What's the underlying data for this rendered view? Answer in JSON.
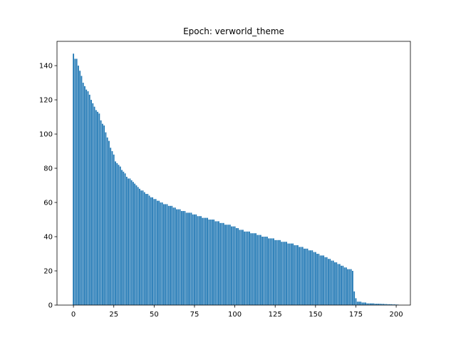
{
  "chart_data": {
    "type": "bar",
    "title": "Epoch: verworld_theme",
    "color": "#1f77b4",
    "x": [
      0,
      1,
      2,
      3,
      4,
      5,
      6,
      7,
      8,
      9,
      10,
      11,
      12,
      13,
      14,
      15,
      16,
      17,
      18,
      19,
      20,
      21,
      22,
      23,
      24,
      25,
      26,
      27,
      28,
      29,
      30,
      31,
      32,
      33,
      34,
      35,
      36,
      37,
      38,
      39,
      40,
      41,
      42,
      43,
      44,
      45,
      46,
      47,
      48,
      49,
      50,
      51,
      52,
      53,
      54,
      55,
      56,
      57,
      58,
      59,
      60,
      61,
      62,
      63,
      64,
      65,
      66,
      67,
      68,
      69,
      70,
      71,
      72,
      73,
      74,
      75,
      76,
      77,
      78,
      79,
      80,
      81,
      82,
      83,
      84,
      85,
      86,
      87,
      88,
      89,
      90,
      91,
      92,
      93,
      94,
      95,
      96,
      97,
      98,
      99,
      100,
      101,
      102,
      103,
      104,
      105,
      106,
      107,
      108,
      109,
      110,
      111,
      112,
      113,
      114,
      115,
      116,
      117,
      118,
      119,
      120,
      121,
      122,
      123,
      124,
      125,
      126,
      127,
      128,
      129,
      130,
      131,
      132,
      133,
      134,
      135,
      136,
      137,
      138,
      139,
      140,
      141,
      142,
      143,
      144,
      145,
      146,
      147,
      148,
      149,
      150,
      151,
      152,
      153,
      154,
      155,
      156,
      157,
      158,
      159,
      160,
      161,
      162,
      163,
      164,
      165,
      166,
      167,
      168,
      169,
      170,
      171,
      172,
      173,
      174,
      175,
      176,
      177,
      178,
      179,
      180,
      181,
      182,
      183,
      184,
      185,
      186,
      187,
      188,
      189,
      190,
      191,
      192,
      193,
      194,
      195,
      196,
      197,
      198,
      199,
      200,
      201
    ],
    "values": [
      147,
      144,
      144,
      140,
      137,
      134,
      130,
      128,
      126,
      125,
      123,
      120,
      118,
      116,
      114,
      113,
      112,
      108,
      106,
      105,
      101,
      98,
      96,
      92,
      90,
      88,
      84,
      83,
      82,
      81,
      79,
      78,
      77,
      75,
      74,
      74,
      73,
      72,
      71,
      70,
      69,
      68,
      67,
      67,
      66,
      65,
      65,
      64,
      63,
      63,
      62,
      62,
      61,
      61,
      60,
      60,
      59,
      59,
      59,
      58,
      58,
      58,
      57,
      57,
      56,
      56,
      56,
      55,
      55,
      55,
      54,
      54,
      54,
      54,
      53,
      53,
      53,
      52,
      52,
      52,
      51,
      51,
      51,
      51,
      50,
      50,
      50,
      50,
      49,
      49,
      49,
      48,
      48,
      48,
      47,
      47,
      47,
      47,
      46,
      46,
      46,
      45,
      45,
      44,
      44,
      44,
      43,
      43,
      43,
      43,
      42,
      42,
      42,
      42,
      41,
      41,
      41,
      40,
      40,
      40,
      40,
      39,
      39,
      39,
      39,
      38,
      38,
      38,
      38,
      37,
      37,
      37,
      37,
      36,
      36,
      36,
      36,
      35,
      35,
      35,
      34,
      34,
      34,
      33,
      33,
      33,
      32,
      32,
      32,
      31,
      31,
      30,
      30,
      29,
      29,
      29,
      28,
      28,
      27,
      27,
      26,
      26,
      25,
      25,
      24,
      24,
      23,
      23,
      22,
      22,
      21,
      21,
      21,
      20,
      8,
      4,
      2,
      2,
      2,
      1.5,
      1.5,
      1.5,
      1,
      1,
      1,
      1,
      1,
      0.8,
      0.8,
      0.8,
      0.8,
      0.7,
      0.7,
      0.6,
      0.6,
      0.5,
      0.5,
      0.5,
      0.4,
      0.4,
      0.3,
      0.3
    ],
    "xlim": [
      -10.2,
      208.8
    ],
    "ylim": [
      0,
      154.2
    ],
    "xticks": [
      0,
      25,
      50,
      75,
      100,
      125,
      150,
      175,
      200
    ],
    "yticks": [
      0,
      20,
      40,
      60,
      80,
      100,
      120,
      140
    ]
  }
}
